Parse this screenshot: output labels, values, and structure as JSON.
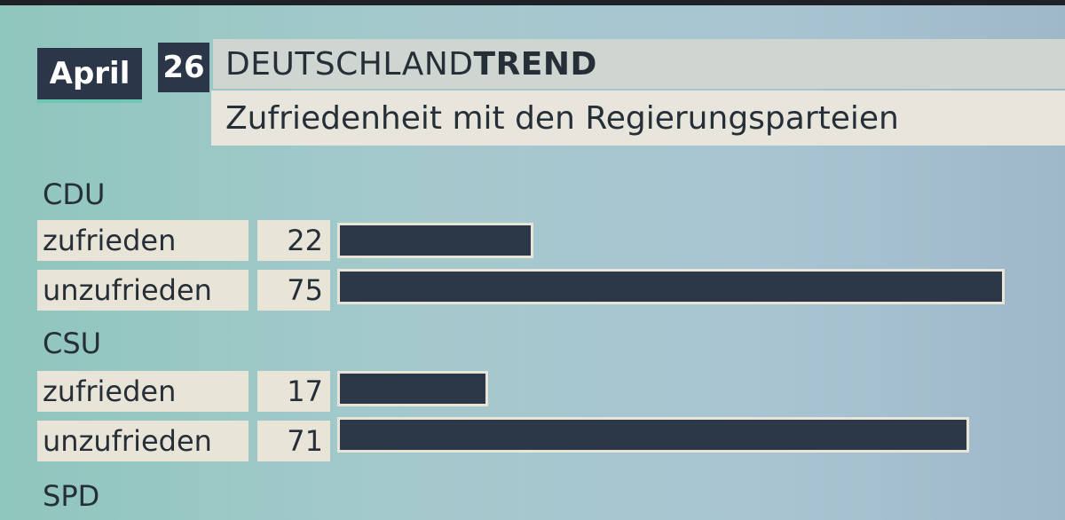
{
  "header": {
    "month": "April",
    "day": "26",
    "brand_light": "DEUTSCHLAND",
    "brand_bold": "TREND",
    "subtitle": "Zufriedenheit mit den Regierungsparteien"
  },
  "colors": {
    "bar": "#2c3747",
    "label_bg": "#e9e4d8",
    "accent": "#6cc7b5"
  },
  "chart_data": {
    "type": "bar",
    "title": "Zufriedenheit mit den Regierungsparteien",
    "xlim": [
      0,
      75
    ],
    "groups": [
      {
        "name": "CDU",
        "rows": [
          {
            "label": "zufrieden",
            "value": 22
          },
          {
            "label": "unzufrieden",
            "value": 75
          }
        ]
      },
      {
        "name": "CSU",
        "rows": [
          {
            "label": "zufrieden",
            "value": 17
          },
          {
            "label": "unzufrieden",
            "value": 71
          }
        ]
      },
      {
        "name": "SPD",
        "rows": []
      }
    ]
  }
}
